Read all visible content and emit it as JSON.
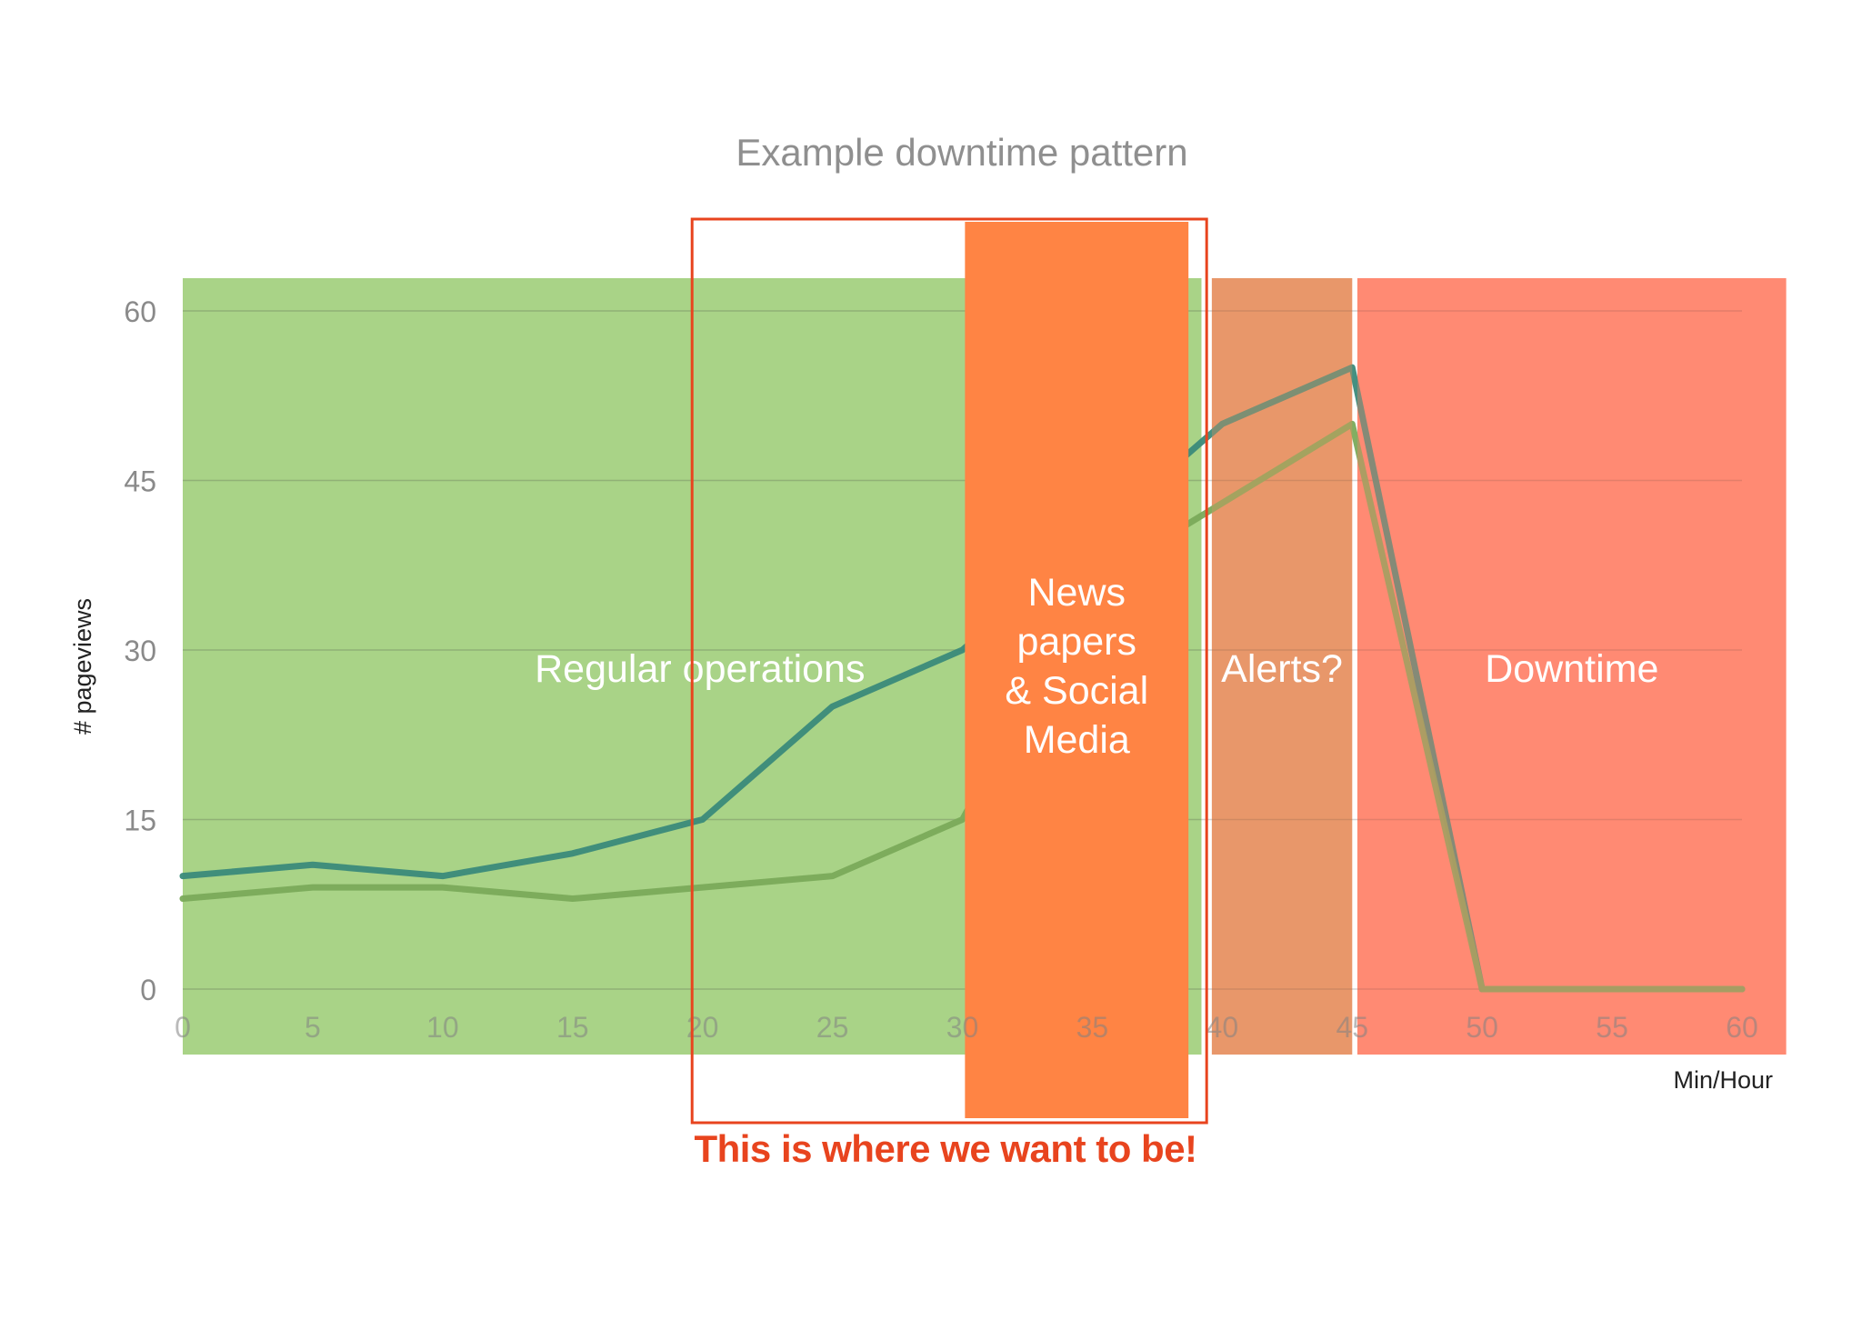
{
  "chart_data": {
    "type": "line",
    "title": "Example downtime pattern",
    "xlabel": "Min/Hour",
    "ylabel": "# pageviews",
    "x": [
      0,
      5,
      10,
      15,
      20,
      25,
      30,
      35,
      40,
      45,
      50,
      55,
      60
    ],
    "xlim": [
      0,
      60
    ],
    "ylim": [
      0,
      60
    ],
    "x_ticks": [
      "0",
      "5",
      "10",
      "15",
      "20",
      "25",
      "30",
      "35",
      "40",
      "45",
      "50",
      "55",
      "60"
    ],
    "y_ticks": [
      "0",
      "15",
      "30",
      "45",
      "60"
    ],
    "grid": true,
    "series": [
      {
        "values": [
          10,
          11,
          10,
          12,
          15,
          25,
          30,
          40,
          50,
          55,
          0,
          0,
          0
        ],
        "color": "#3a8a7a"
      },
      {
        "values": [
          8,
          9,
          9,
          8,
          9,
          10,
          15,
          36,
          43,
          50,
          0,
          0,
          0
        ],
        "color": "#7aaa5a"
      }
    ],
    "zones": [
      {
        "label": "Regular operations",
        "x_start": 0,
        "x_end": 39.2,
        "color": "#a9d387"
      },
      {
        "label": "News papers & Social Media",
        "label_lines": [
          "News",
          "papers",
          "& Social",
          "Media"
        ],
        "x_start": 30.1,
        "x_end": 38.7,
        "color": "#ff8444"
      },
      {
        "label": "Alerts?",
        "x_start": 39.6,
        "x_end": 45,
        "color": "#e8976a"
      },
      {
        "label": "Downtime",
        "x_start": 45.2,
        "x_end": 61.7,
        "color": "#ff8a73"
      }
    ]
  },
  "callout": {
    "text": "This is where we want to be!",
    "x_start": 19.6,
    "x_end": 39.4,
    "color": "#e8441e"
  }
}
